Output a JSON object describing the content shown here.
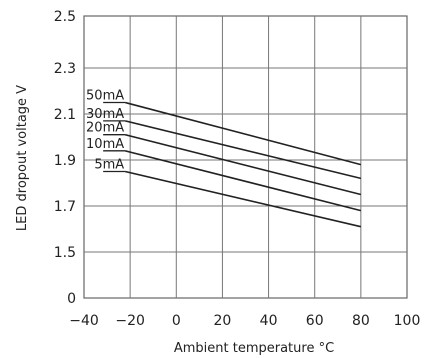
{
  "chart_data": {
    "type": "line",
    "xlabel": "Ambient temperature °C",
    "ylabel": "LED dropout voltage V",
    "xlim": [
      -40,
      100
    ],
    "ylim_ticks": [
      "0",
      "1.5",
      "1.7",
      "1.9",
      "2.1",
      "2.3",
      "2.5"
    ],
    "x_ticks": [
      "−40",
      "−20",
      "0",
      "20",
      "40",
      "60",
      "80",
      "100"
    ],
    "grid": true,
    "legend": "inline labels at left end of lines",
    "series": [
      {
        "name": "50mA",
        "x": [
          -20,
          80
        ],
        "y": [
          2.15,
          1.88
        ]
      },
      {
        "name": "30mA",
        "x": [
          -20,
          80
        ],
        "y": [
          2.07,
          1.82
        ]
      },
      {
        "name": "20mA",
        "x": [
          -20,
          80
        ],
        "y": [
          2.01,
          1.75
        ]
      },
      {
        "name": "10mA",
        "x": [
          -20,
          80
        ],
        "y": [
          1.94,
          1.68
        ]
      },
      {
        "name": "5mA",
        "x": [
          -20,
          80
        ],
        "y": [
          1.85,
          1.61
        ]
      }
    ]
  }
}
